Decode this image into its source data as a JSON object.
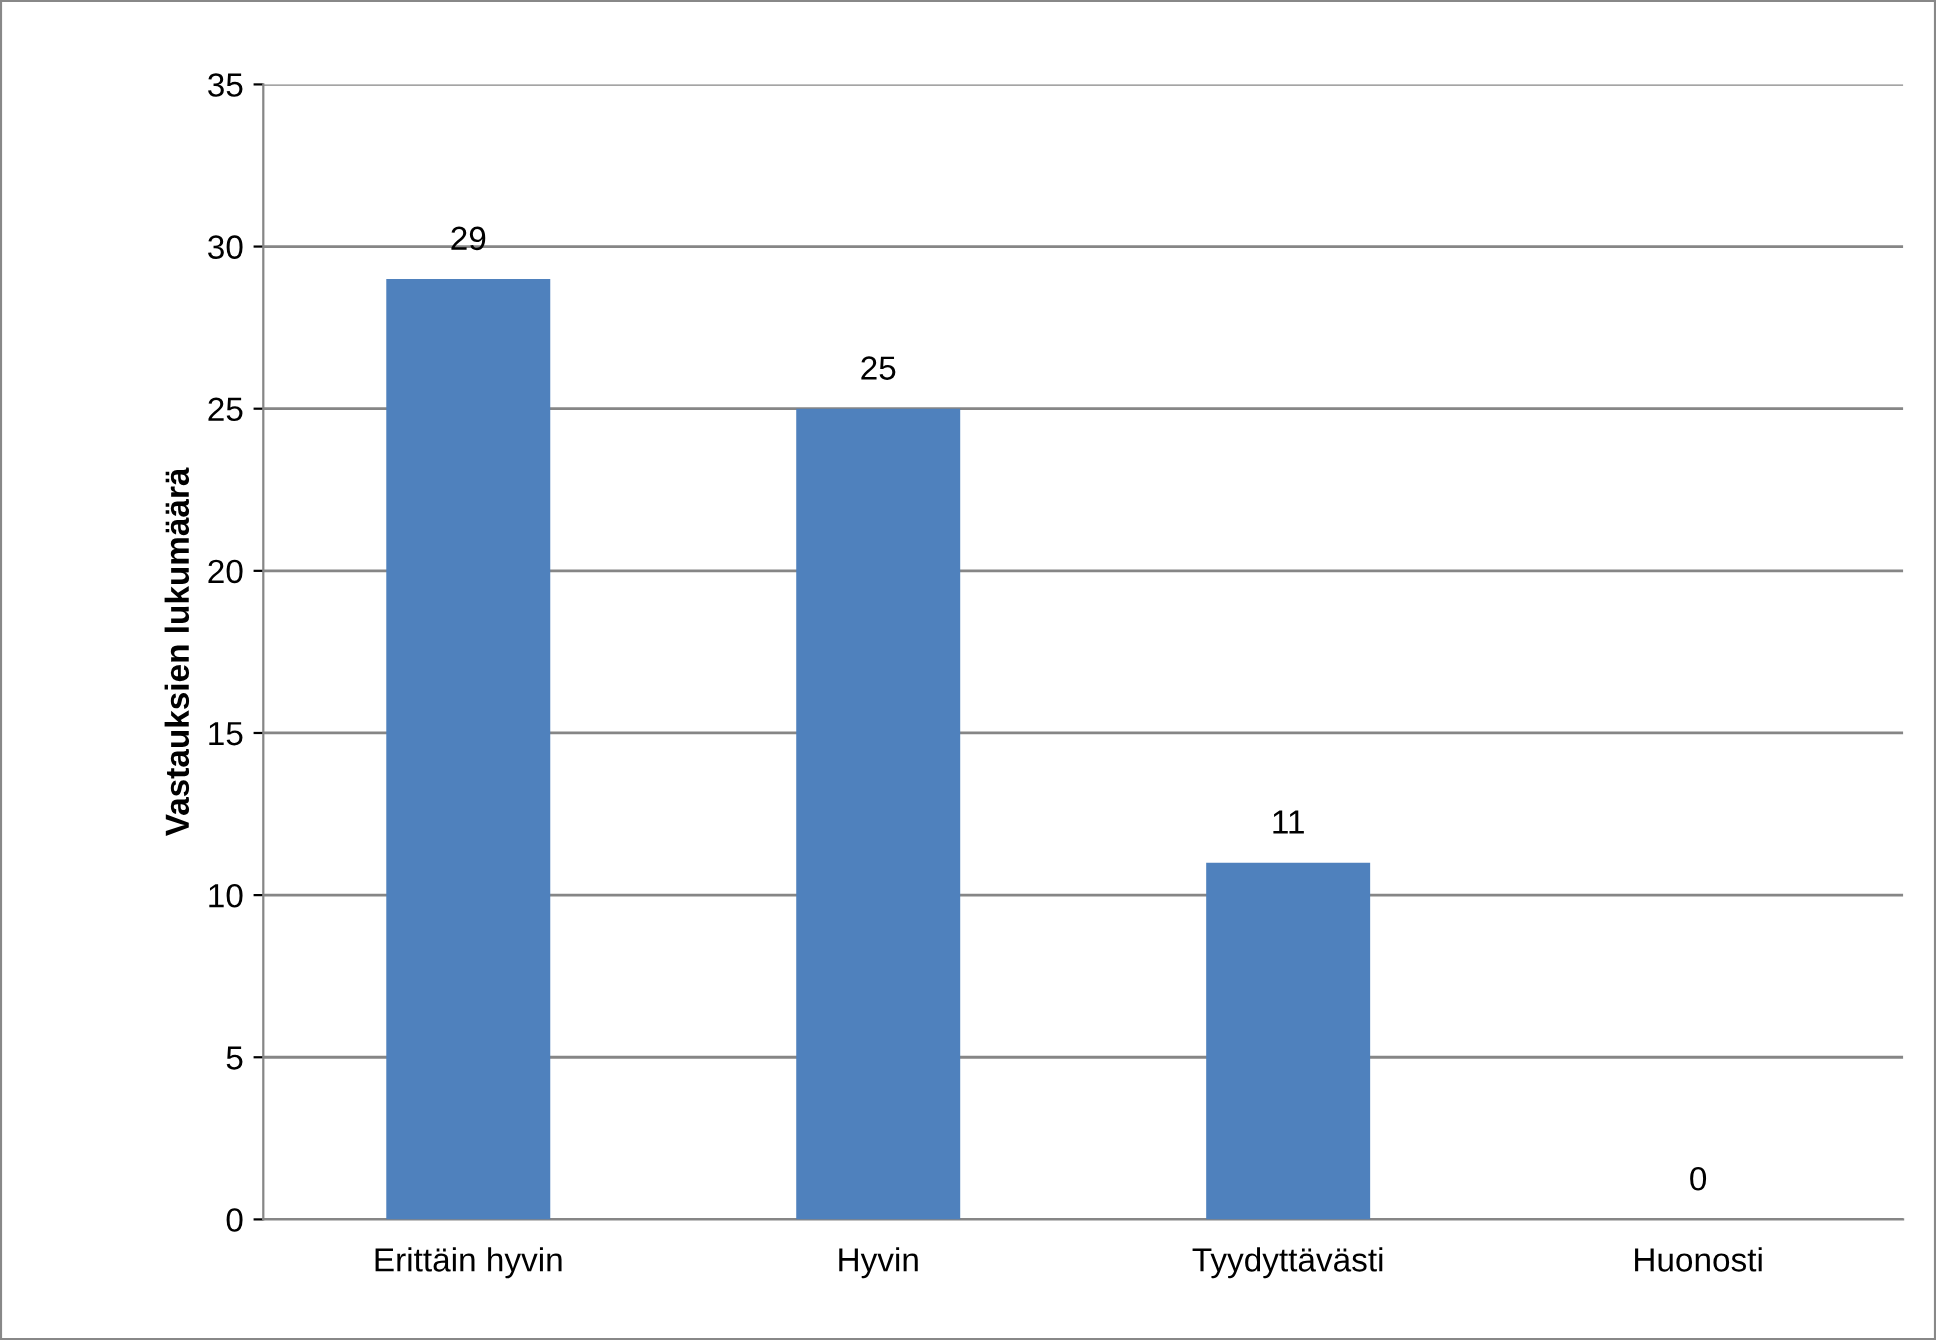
{
  "chart_data": {
    "type": "bar",
    "ylabel": "Vastauksien lukumäärä",
    "categories": [
      "Erittäin hyvin",
      "Hyvin",
      "Tyydyttävästi",
      "Huonosti"
    ],
    "values": [
      29,
      25,
      11,
      0
    ],
    "color": "#4f81bd",
    "ylim": [
      0,
      35
    ],
    "yticks": [
      0,
      5,
      10,
      15,
      20,
      25,
      30,
      35
    ],
    "grid": "y",
    "data_labels": true
  }
}
